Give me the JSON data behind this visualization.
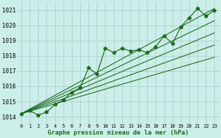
{
  "title": "Graphe pression niveau de la mer (hPa)",
  "background_color": "#cceee8",
  "grid_color": "#aad4ce",
  "line_color": "#1a6b1a",
  "hours": [
    0,
    1,
    2,
    3,
    4,
    5,
    6,
    7,
    8,
    9,
    10,
    11,
    12,
    13,
    14,
    15,
    16,
    17,
    18,
    19,
    20,
    21,
    22,
    23
  ],
  "x_labels": [
    "0",
    "1",
    "2",
    "3",
    "4",
    "5",
    "6",
    "7",
    "8",
    "9",
    "10",
    "11",
    "12",
    "13",
    "14",
    "15",
    "16",
    "17",
    "18",
    "19",
    "20",
    "21",
    "22",
    "23"
  ],
  "ylim": [
    1013.5,
    1021.5
  ],
  "yticks": [
    1014,
    1015,
    1016,
    1017,
    1018,
    1019,
    1020,
    1021
  ],
  "main": [
    1014.2,
    1014.4,
    1014.1,
    1014.3,
    1014.8,
    1015.1,
    1015.6,
    1015.9,
    1017.2,
    1016.8,
    1018.5,
    1018.2,
    1018.5,
    1018.3,
    1018.4,
    1018.2,
    1018.6,
    1019.3,
    1018.8,
    1019.9,
    1020.5,
    1021.1,
    1020.6,
    1021.0
  ],
  "fan_lines": [
    [
      1014.2,
      1021.1
    ],
    [
      1014.2,
      1020.3
    ],
    [
      1014.2,
      1019.5
    ],
    [
      1014.2,
      1018.7
    ],
    [
      1014.2,
      1017.9
    ]
  ]
}
